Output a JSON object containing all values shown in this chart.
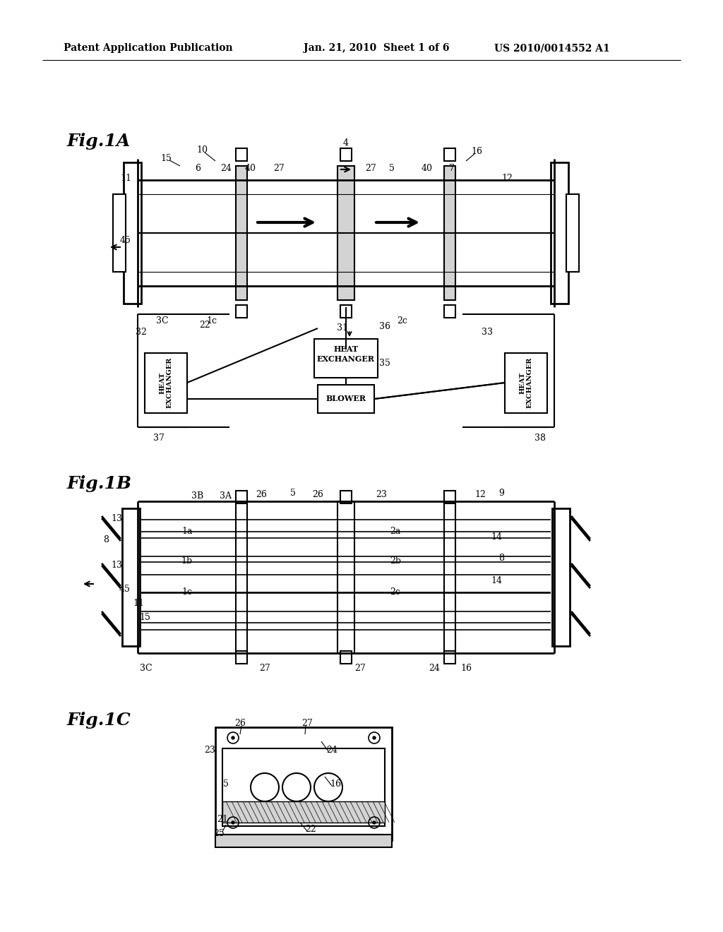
{
  "bg_color": "#ffffff",
  "header_left": "Patent Application Publication",
  "header_mid": "Jan. 21, 2010  Sheet 1 of 6",
  "header_right": "US 2010/0014552 A1",
  "fig1a_label": "Fig.1A",
  "fig1b_label": "Fig.1B",
  "fig1c_label": "Fig.1C"
}
